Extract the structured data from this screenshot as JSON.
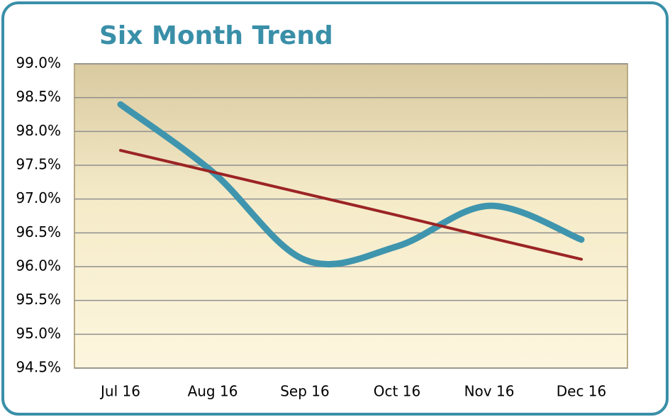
{
  "chart_data": {
    "type": "line",
    "title": "Six Month Trend",
    "categories": [
      "Jul 16",
      "Aug 16",
      "Sep 16",
      "Oct 16",
      "Nov 16",
      "Dec 16"
    ],
    "series": [
      {
        "color": "#3f95ad",
        "smooth": true,
        "values": [
          98.4,
          97.4,
          96.1,
          96.3,
          96.9,
          96.4
        ]
      },
      {
        "color": "#9b2424",
        "smooth": false,
        "values": [
          97.72,
          97.4,
          97.08,
          96.76,
          96.43,
          96.11
        ]
      }
    ],
    "ylim": [
      94.5,
      99.0
    ],
    "yticks": [
      {
        "value": 94.5,
        "label": "94.5%"
      },
      {
        "value": 95.0,
        "label": "95.0%"
      },
      {
        "value": 95.5,
        "label": "95.5%"
      },
      {
        "value": 96.0,
        "label": "96.0%"
      },
      {
        "value": 96.5,
        "label": "96.5%"
      },
      {
        "value": 97.0,
        "label": "97.0%"
      },
      {
        "value": 97.5,
        "label": "97.5%"
      },
      {
        "value": 98.0,
        "label": "98.0%"
      },
      {
        "value": 98.5,
        "label": "98.5%"
      },
      {
        "value": 99.0,
        "label": "99.0%"
      }
    ],
    "grid": true
  }
}
